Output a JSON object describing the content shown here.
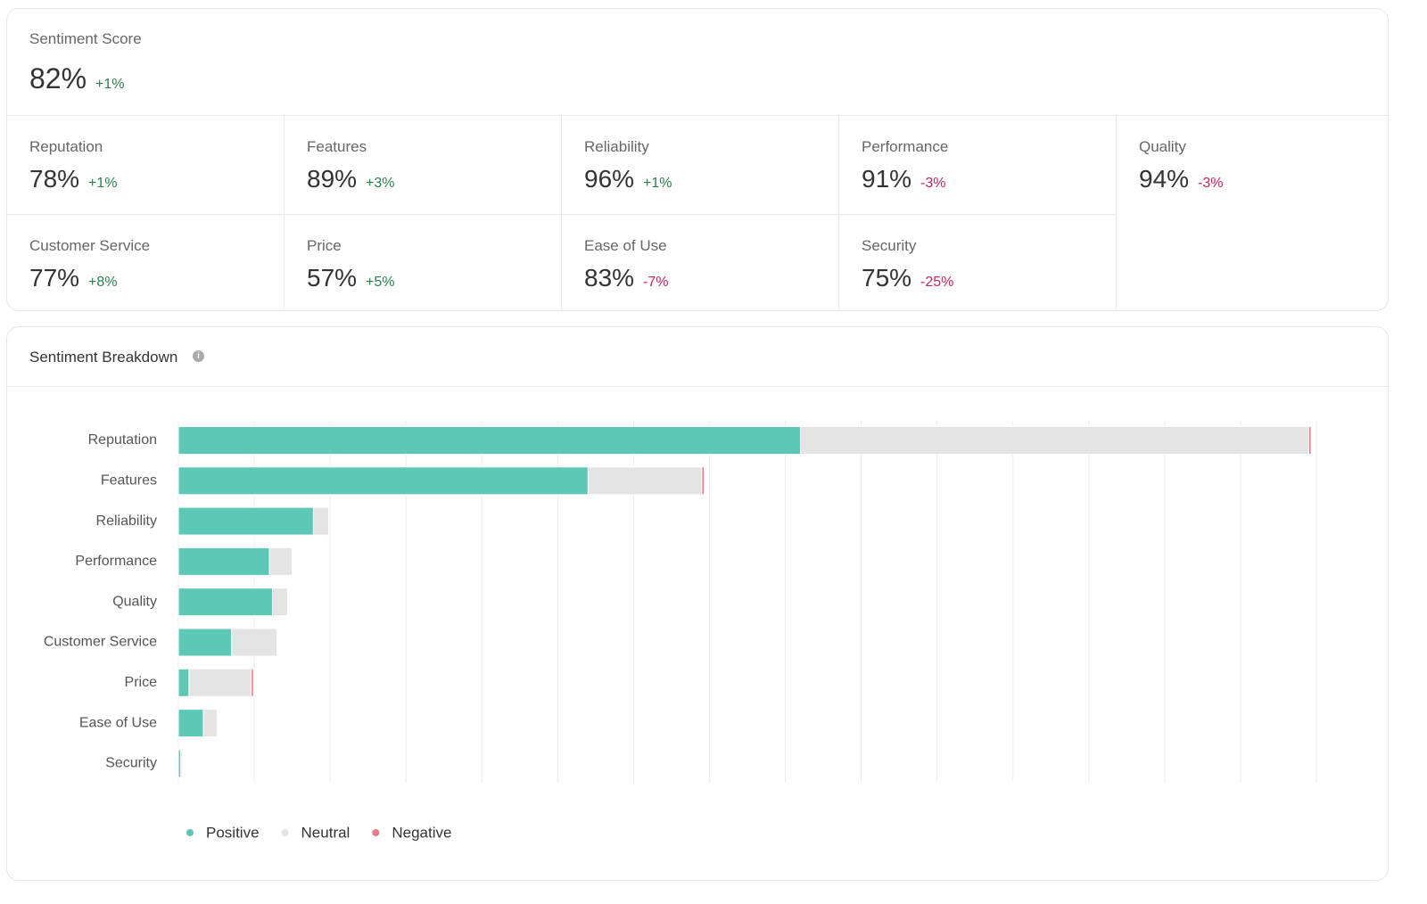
{
  "score": {
    "title": "Sentiment Score",
    "value": "82%",
    "change": "+1%"
  },
  "metrics": [
    {
      "label": "Reputation",
      "value": "78%",
      "change": "+1%"
    },
    {
      "label": "Features",
      "value": "89%",
      "change": "+3%"
    },
    {
      "label": "Reliability",
      "value": "96%",
      "change": "+1%"
    },
    {
      "label": "Performance",
      "value": "91%",
      "change": "-3%"
    },
    {
      "label": "Quality",
      "value": "94%",
      "change": "-3%"
    },
    {
      "label": "Customer Service",
      "value": "77%",
      "change": "+8%"
    },
    {
      "label": "Price",
      "value": "57%",
      "change": "+5%"
    },
    {
      "label": "Ease of Use",
      "value": "83%",
      "change": "-7%"
    },
    {
      "label": "Security",
      "value": "75%",
      "change": "-25%"
    }
  ],
  "chart_data": {
    "type": "stacked-bar-horizontal",
    "title": "Sentiment Breakdown",
    "categories": [
      "Reputation",
      "Features",
      "Reliability",
      "Performance",
      "Quality",
      "Customer Service",
      "Price",
      "Ease of Use",
      "Security"
    ],
    "series": [
      {
        "name": "Positive",
        "color": "#5ec8b7",
        "values": [
          82,
          54,
          17.8,
          12,
          12.4,
          7,
          1.4,
          3.3,
          0.3
        ]
      },
      {
        "name": "Neutral",
        "color": "#e4e4e4",
        "values": [
          67,
          15,
          2,
          3,
          2,
          6,
          8.2,
          1.8,
          0.2
        ]
      },
      {
        "name": "Negative",
        "color": "#e8788a",
        "values": [
          0.3,
          0.3,
          0,
          0,
          0,
          0,
          0.3,
          0,
          0
        ]
      }
    ],
    "xlim": [
      0,
      150
    ],
    "xticks": [
      0,
      10,
      20,
      30,
      40,
      50,
      60,
      70,
      80,
      90,
      100,
      110,
      120,
      130,
      140,
      150
    ],
    "grid": true
  }
}
